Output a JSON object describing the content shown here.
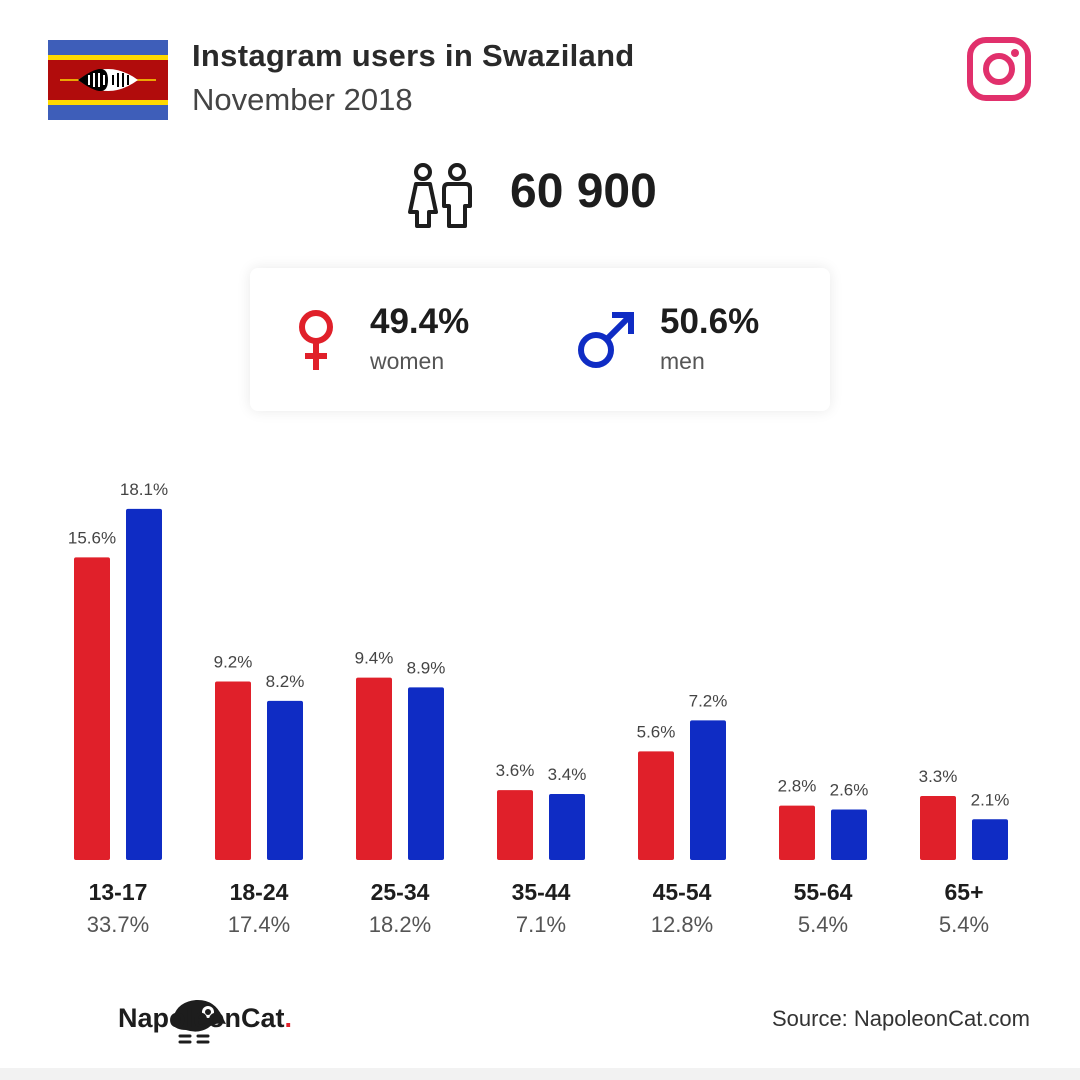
{
  "header": {
    "title": "Instagram users in Swaziland",
    "subtitle": "November 2018"
  },
  "summary": {
    "total": "60 900",
    "women": {
      "pct": "49.4%",
      "label": "women"
    },
    "men": {
      "pct": "50.6%",
      "label": "men"
    }
  },
  "icons": {
    "flag": "swaziland-flag-icon",
    "platform": "instagram-icon",
    "people": "people-icon",
    "female": "female-symbol-icon",
    "male": "male-symbol-icon",
    "brand": "napoleoncat-logo-icon"
  },
  "colors": {
    "women": "#e0202a",
    "men": "#0f2cc4",
    "instagram": "#e1306c"
  },
  "chart_data": {
    "type": "bar",
    "categories": [
      "13-17",
      "18-24",
      "25-34",
      "35-44",
      "45-54",
      "55-64",
      "65+"
    ],
    "category_totals": [
      "33.7%",
      "17.4%",
      "18.2%",
      "7.1%",
      "12.8%",
      "5.4%",
      "5.4%"
    ],
    "series": [
      {
        "values": [
          15.6,
          9.2,
          9.4,
          3.6,
          5.6,
          2.8,
          3.3
        ],
        "labels": [
          "15.6%",
          "9.2%",
          "9.4%",
          "3.6%",
          "5.6%",
          "2.8%",
          "3.3%"
        ]
      },
      {
        "values": [
          18.1,
          8.2,
          8.9,
          3.4,
          7.2,
          2.6,
          2.1
        ],
        "labels": [
          "18.1%",
          "8.2%",
          "8.9%",
          "3.4%",
          "7.2%",
          "2.6%",
          "2.1%"
        ]
      }
    ],
    "ylim": [
      0,
      20
    ],
    "grid": false
  },
  "footer": {
    "brand_name": "NapoleonCat",
    "brand_dot": ".",
    "source": "Source: NapoleonCat.com"
  }
}
